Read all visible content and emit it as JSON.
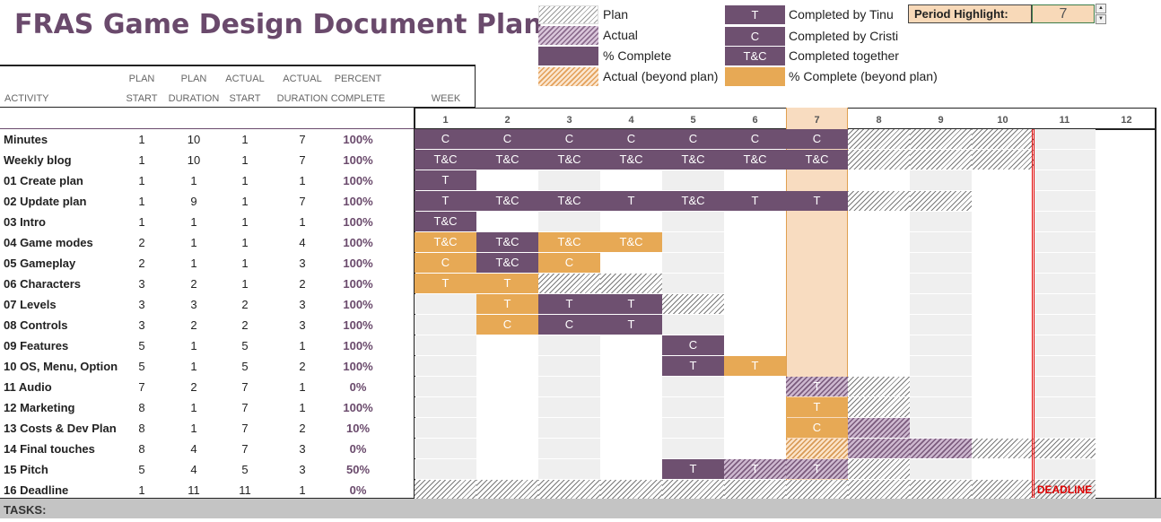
{
  "title": "FRAS Game Design Document Plan",
  "legend": {
    "plan": "Plan",
    "actual": "Actual",
    "percent_complete": "% Complete",
    "actual_beyond": "Actual (beyond plan)",
    "tinu_label": "T",
    "tinu": "Completed by Tinu",
    "cristi_label": "C",
    "cristi": "Completed by Cristi",
    "together_label": "T&C",
    "together": "Completed together",
    "percent_beyond": "% Complete (beyond plan)"
  },
  "period_highlight": {
    "label": "Period Highlight:",
    "value": "7"
  },
  "headers": {
    "activity": "ACTIVITY",
    "plan_start": [
      "PLAN",
      "START"
    ],
    "plan_duration": [
      "PLAN",
      "DURATION"
    ],
    "actual_start": [
      "ACTUAL",
      "START"
    ],
    "actual_duration": [
      "ACTUAL",
      "DURATION"
    ],
    "percent_complete": [
      "PERCENT",
      "COMPLETE"
    ],
    "week": "WEEK"
  },
  "weeks": [
    "1",
    "2",
    "3",
    "4",
    "5",
    "6",
    "7",
    "8",
    "9",
    "10",
    "11",
    "12"
  ],
  "highlight_week": 7,
  "deadline_label": "DEADLINE",
  "tasks_label": "TASKS:",
  "colors": {
    "purple": "#6e5070",
    "orange": "#e7a955",
    "highlight": "#f8dcc0",
    "deadline": "#e00000"
  },
  "activities": [
    {
      "name": "Minutes",
      "plan_start": "1",
      "plan_duration": "10",
      "actual_start": "1",
      "actual_duration": "7",
      "percent": "100%",
      "cells": [
        [
          "pv",
          "C"
        ],
        [
          "pv",
          "C"
        ],
        [
          "pv",
          "C"
        ],
        [
          "pv",
          "C"
        ],
        [
          "pv",
          "C"
        ],
        [
          "pv",
          "C"
        ],
        [
          "pv",
          "C"
        ],
        [
          "hp",
          ""
        ],
        [
          "hp",
          ""
        ],
        [
          "hp",
          ""
        ]
      ]
    },
    {
      "name": "Weekly blog",
      "plan_start": "1",
      "plan_duration": "10",
      "actual_start": "1",
      "actual_duration": "7",
      "percent": "100%",
      "cells": [
        [
          "pv",
          "T&C"
        ],
        [
          "pv",
          "T&C"
        ],
        [
          "pv",
          "T&C"
        ],
        [
          "pv",
          "T&C"
        ],
        [
          "pv",
          "T&C"
        ],
        [
          "pv",
          "T&C"
        ],
        [
          "pv",
          "T&C"
        ],
        [
          "hp",
          ""
        ],
        [
          "hp",
          ""
        ],
        [
          "hp",
          ""
        ]
      ]
    },
    {
      "name": "01 Create plan",
      "plan_start": "1",
      "plan_duration": "1",
      "actual_start": "1",
      "actual_duration": "1",
      "percent": "100%",
      "cells": [
        [
          "pv",
          "T"
        ]
      ]
    },
    {
      "name": "02 Update plan",
      "plan_start": "1",
      "plan_duration": "9",
      "actual_start": "1",
      "actual_duration": "7",
      "percent": "100%",
      "cells": [
        [
          "pv",
          "T"
        ],
        [
          "pv",
          "T&C"
        ],
        [
          "pv",
          "T&C"
        ],
        [
          "pv",
          "T"
        ],
        [
          "pv",
          "T&C"
        ],
        [
          "pv",
          "T"
        ],
        [
          "pv",
          "T"
        ],
        [
          "hp",
          ""
        ],
        [
          "hp",
          ""
        ]
      ]
    },
    {
      "name": "03 Intro",
      "plan_start": "1",
      "plan_duration": "1",
      "actual_start": "1",
      "actual_duration": "1",
      "percent": "100%",
      "cells": [
        [
          "pv",
          "T&C"
        ]
      ]
    },
    {
      "name": "04 Game modes",
      "plan_start": "2",
      "plan_duration": "1",
      "actual_start": "1",
      "actual_duration": "4",
      "percent": "100%",
      "cells": [
        [
          "po",
          "T&C"
        ],
        [
          "pv",
          "T&C"
        ],
        [
          "po",
          "T&C"
        ],
        [
          "po",
          "T&C"
        ]
      ]
    },
    {
      "name": "05 Gameplay",
      "plan_start": "2",
      "plan_duration": "1",
      "actual_start": "1",
      "actual_duration": "3",
      "percent": "100%",
      "cells": [
        [
          "po",
          "C"
        ],
        [
          "pv",
          "T&C"
        ],
        [
          "po",
          "C"
        ]
      ]
    },
    {
      "name": "06 Characters",
      "plan_start": "3",
      "plan_duration": "2",
      "actual_start": "1",
      "actual_duration": "2",
      "percent": "100%",
      "cells": [
        [
          "po",
          "T"
        ],
        [
          "po",
          "T"
        ],
        [
          "hp",
          ""
        ],
        [
          "hp",
          ""
        ]
      ]
    },
    {
      "name": "07 Levels",
      "plan_start": "3",
      "plan_duration": "3",
      "actual_start": "2",
      "actual_duration": "3",
      "percent": "100%",
      "cells": [
        [
          "",
          ""
        ],
        [
          "po",
          "T"
        ],
        [
          "pv",
          "T"
        ],
        [
          "pv",
          "T"
        ],
        [
          "hp",
          ""
        ]
      ]
    },
    {
      "name": "08 Controls",
      "plan_start": "3",
      "plan_duration": "2",
      "actual_start": "2",
      "actual_duration": "3",
      "percent": "100%",
      "cells": [
        [
          "",
          ""
        ],
        [
          "po",
          "C"
        ],
        [
          "pv",
          "C"
        ],
        [
          "pv",
          "T"
        ]
      ]
    },
    {
      "name": "09 Features",
      "plan_start": "5",
      "plan_duration": "1",
      "actual_start": "5",
      "actual_duration": "1",
      "percent": "100%",
      "cells": [
        [
          "",
          ""
        ],
        [
          "",
          ""
        ],
        [
          "",
          ""
        ],
        [
          "",
          ""
        ],
        [
          "pv",
          "C"
        ]
      ]
    },
    {
      "name": "10 OS, Menu, Options",
      "plan_start": "5",
      "plan_duration": "1",
      "actual_start": "5",
      "actual_duration": "2",
      "percent": "100%",
      "cells": [
        [
          "",
          ""
        ],
        [
          "",
          ""
        ],
        [
          "",
          ""
        ],
        [
          "",
          ""
        ],
        [
          "pv",
          "T"
        ],
        [
          "po",
          "T"
        ]
      ]
    },
    {
      "name": "11 Audio",
      "plan_start": "7",
      "plan_duration": "2",
      "actual_start": "7",
      "actual_duration": "1",
      "percent": "0%",
      "cells": [
        [
          "",
          ""
        ],
        [
          "",
          ""
        ],
        [
          "",
          ""
        ],
        [
          "",
          ""
        ],
        [
          "",
          ""
        ],
        [
          "",
          ""
        ],
        [
          "ha",
          "T"
        ],
        [
          "hp",
          ""
        ]
      ]
    },
    {
      "name": "12 Marketing",
      "plan_start": "8",
      "plan_duration": "1",
      "actual_start": "7",
      "actual_duration": "1",
      "percent": "100%",
      "cells": [
        [
          "",
          ""
        ],
        [
          "",
          ""
        ],
        [
          "",
          ""
        ],
        [
          "",
          ""
        ],
        [
          "",
          ""
        ],
        [
          "",
          ""
        ],
        [
          "po",
          "T"
        ],
        [
          "hp",
          ""
        ]
      ]
    },
    {
      "name": "13 Costs & Dev Plan",
      "plan_start": "8",
      "plan_duration": "1",
      "actual_start": "7",
      "actual_duration": "2",
      "percent": "10%",
      "cells": [
        [
          "",
          ""
        ],
        [
          "",
          ""
        ],
        [
          "",
          ""
        ],
        [
          "",
          ""
        ],
        [
          "",
          ""
        ],
        [
          "",
          ""
        ],
        [
          "po",
          "C"
        ],
        [
          "ha",
          ""
        ]
      ]
    },
    {
      "name": "14 Final touches",
      "plan_start": "8",
      "plan_duration": "4",
      "actual_start": "7",
      "actual_duration": "3",
      "percent": "0%",
      "cells": [
        [
          "",
          ""
        ],
        [
          "",
          ""
        ],
        [
          "",
          ""
        ],
        [
          "",
          ""
        ],
        [
          "",
          ""
        ],
        [
          "",
          ""
        ],
        [
          "hb",
          ""
        ],
        [
          "ha",
          ""
        ],
        [
          "ha",
          ""
        ],
        [
          "hp",
          ""
        ],
        [
          "hp",
          ""
        ]
      ]
    },
    {
      "name": "15 Pitch",
      "plan_start": "5",
      "plan_duration": "4",
      "actual_start": "5",
      "actual_duration": "3",
      "percent": "50%",
      "cells": [
        [
          "",
          ""
        ],
        [
          "",
          ""
        ],
        [
          "",
          ""
        ],
        [
          "",
          ""
        ],
        [
          "pv",
          "T"
        ],
        [
          "ha",
          "T"
        ],
        [
          "ha",
          "T"
        ],
        [
          "hp",
          ""
        ]
      ]
    },
    {
      "name": "16 Deadline",
      "plan_start": "1",
      "plan_duration": "11",
      "actual_start": "11",
      "actual_duration": "1",
      "percent": "0%",
      "cells": [
        [
          "hp",
          ""
        ],
        [
          "hp",
          ""
        ],
        [
          "hp",
          ""
        ],
        [
          "hp",
          ""
        ],
        [
          "hp",
          ""
        ],
        [
          "hp",
          ""
        ],
        [
          "hp",
          ""
        ],
        [
          "hp",
          ""
        ],
        [
          "hp",
          ""
        ],
        [
          "hp",
          ""
        ],
        [
          "hpd",
          "DEADLINE"
        ]
      ]
    }
  ]
}
